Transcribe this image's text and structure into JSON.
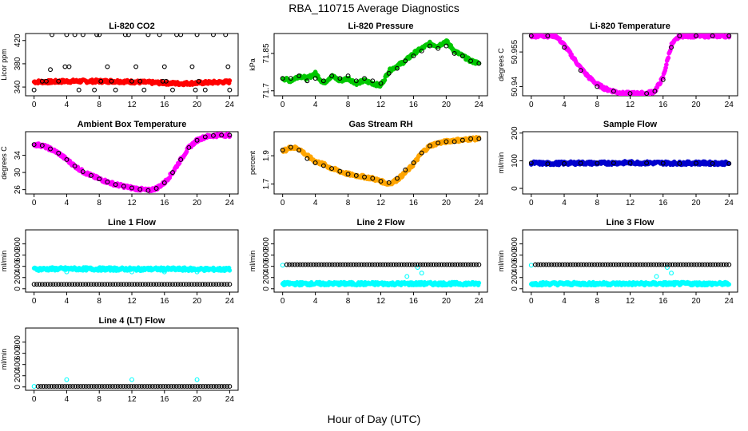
{
  "figure": {
    "title": "RBA_110715  Average Diagnostics",
    "xlabel": "Hour of Day (UTC)"
  },
  "colors": {
    "black": "#000000",
    "red": "#ff0000",
    "green": "#00c800",
    "magenta": "#ff00ff",
    "orange": "#ffa500",
    "blue": "#0000cd",
    "cyan": "#00ffff"
  },
  "chart_data": [
    {
      "type": "scatter",
      "title": "Li-820 CO2",
      "ylabel": "Licor ppm",
      "xlim": [
        0,
        24
      ],
      "ylim": [
        325,
        432
      ],
      "xticks": [
        0,
        4,
        8,
        12,
        16,
        20,
        24
      ],
      "yticks": [
        340,
        380,
        420
      ],
      "series": [
        {
          "color": "red",
          "marker": "filled-dense",
          "x": [
            0,
            2,
            4,
            6,
            8,
            10,
            12,
            14,
            16,
            18,
            20,
            22,
            24
          ],
          "y": [
            349,
            349,
            350,
            350,
            350,
            350,
            349,
            348,
            347,
            346,
            347,
            348,
            349
          ]
        },
        {
          "color": "black",
          "marker": "open",
          "x": [
            0,
            1,
            1.5,
            2,
            2.2,
            3,
            3.8,
            4,
            4.3,
            5,
            5.5,
            6,
            7.4,
            7.7,
            8,
            8.2,
            9,
            9.5,
            10,
            11.2,
            11.6,
            12,
            12.5,
            13,
            13.5,
            14,
            15.4,
            15.8,
            16,
            16.2,
            17,
            17.5,
            18,
            19.4,
            19.8,
            20,
            20.2,
            21,
            22,
            23.5,
            23.8,
            24
          ],
          "y": [
            335,
            350,
            350,
            370,
            430,
            350,
            375,
            430,
            375,
            430,
            335,
            430,
            335,
            430,
            430,
            350,
            375,
            350,
            335,
            430,
            430,
            350,
            375,
            350,
            335,
            430,
            430,
            350,
            375,
            350,
            335,
            430,
            430,
            375,
            335,
            430,
            350,
            335,
            430,
            430,
            375,
            335
          ]
        }
      ]
    },
    {
      "type": "scatter",
      "title": "Li-820 Pressure",
      "ylabel": "kPa",
      "xlim": [
        0,
        24
      ],
      "ylim": [
        71.68,
        71.93
      ],
      "xticks": [
        0,
        4,
        8,
        12,
        16,
        20,
        24
      ],
      "yticks": [
        71.7,
        71.85
      ],
      "series": [
        {
          "color": "green",
          "marker": "filled-dense",
          "x": [
            0,
            1,
            2,
            3,
            4,
            5,
            6,
            7,
            8,
            9,
            10,
            11,
            12,
            13,
            14,
            15,
            16,
            17,
            18,
            19,
            20,
            21,
            22,
            23,
            24
          ],
          "y": [
            71.75,
            71.74,
            71.76,
            71.75,
            71.77,
            71.73,
            71.76,
            71.74,
            71.75,
            71.73,
            71.74,
            71.73,
            71.72,
            71.78,
            71.8,
            71.82,
            71.85,
            71.87,
            71.89,
            71.88,
            71.9,
            71.86,
            71.84,
            71.82,
            71.81
          ]
        },
        {
          "color": "black",
          "marker": "open",
          "x": [
            0,
            1,
            2,
            3,
            4,
            5,
            6,
            7,
            8,
            9,
            10,
            11,
            12,
            13,
            14,
            15,
            16,
            17,
            18,
            19,
            20,
            21,
            22,
            23,
            24
          ],
          "y": [
            71.75,
            71.75,
            71.76,
            71.74,
            71.75,
            71.74,
            71.76,
            71.75,
            71.76,
            71.74,
            71.75,
            71.74,
            71.73,
            71.77,
            71.79,
            71.82,
            71.84,
            71.86,
            71.88,
            71.87,
            71.88,
            71.85,
            71.84,
            71.82,
            71.81
          ]
        }
      ]
    },
    {
      "type": "scatter",
      "title": "Li-820 Temperature",
      "ylabel": "degrees C",
      "xlim": [
        0,
        24
      ],
      "ylim": [
        50.936,
        50.963
      ],
      "xticks": [
        0,
        4,
        8,
        12,
        16,
        20,
        24
      ],
      "yticks": [
        50.94,
        50.955
      ],
      "series": [
        {
          "color": "magenta",
          "marker": "filled-dense",
          "x": [
            0,
            1,
            2,
            3,
            4,
            5,
            6,
            7,
            8,
            9,
            10,
            11,
            12,
            13,
            14,
            15,
            16,
            17,
            18,
            19,
            20,
            21,
            22,
            23,
            24
          ],
          "y": [
            50.962,
            50.962,
            50.962,
            50.962,
            50.958,
            50.953,
            50.948,
            50.944,
            50.941,
            50.939,
            50.938,
            50.937,
            50.937,
            50.937,
            50.937,
            50.938,
            50.944,
            50.958,
            50.962,
            50.962,
            50.962,
            50.962,
            50.962,
            50.962,
            50.962
          ]
        },
        {
          "color": "black",
          "marker": "open",
          "x": [
            0,
            2,
            4,
            6,
            8,
            10,
            12,
            14,
            15,
            16,
            17,
            18,
            20,
            22,
            24
          ],
          "y": [
            50.962,
            50.962,
            50.957,
            50.947,
            50.94,
            50.938,
            50.937,
            50.937,
            50.938,
            50.943,
            50.957,
            50.962,
            50.962,
            50.962,
            50.962
          ]
        }
      ]
    },
    {
      "type": "scatter",
      "title": "Ambient Box Temperature",
      "ylabel": "degrees C",
      "xlim": [
        0,
        24
      ],
      "ylim": [
        25,
        39.5
      ],
      "xticks": [
        0,
        4,
        8,
        12,
        16,
        20,
        24
      ],
      "yticks": [
        26,
        30,
        34
      ],
      "series": [
        {
          "color": "magenta",
          "marker": "filled-dense",
          "x": [
            0,
            1,
            2,
            3,
            4,
            5,
            6,
            7,
            8,
            9,
            10,
            11,
            12,
            13,
            14,
            15,
            16,
            17,
            18,
            19,
            20,
            21,
            22,
            23,
            24
          ],
          "y": [
            36.5,
            36.3,
            35.5,
            34.5,
            33,
            31.5,
            30.2,
            29.3,
            28.5,
            27.8,
            27.2,
            26.8,
            26.4,
            26.1,
            25.8,
            26.3,
            27.6,
            30,
            33,
            35.8,
            37.5,
            38.3,
            38.6,
            38.7,
            38.7
          ]
        },
        {
          "color": "black",
          "marker": "open",
          "x": [
            0,
            1,
            2,
            3,
            4,
            5,
            6,
            7,
            8,
            9,
            10,
            11,
            12,
            13,
            14,
            15,
            16,
            17,
            18,
            19,
            20,
            21,
            22,
            23,
            24
          ],
          "y": [
            36.5,
            36.3,
            35.5,
            34.5,
            33,
            31.5,
            30.2,
            29.3,
            28.5,
            27.8,
            27.2,
            26.8,
            26.4,
            26.1,
            25.8,
            26.3,
            27.6,
            30,
            33,
            35.8,
            37.5,
            38.3,
            38.6,
            38.7,
            38.7
          ]
        }
      ]
    },
    {
      "type": "scatter",
      "title": "Gas Stream RH",
      "ylabel": "percent",
      "xlim": [
        0,
        24
      ],
      "ylim": [
        1.63,
        2.07
      ],
      "xticks": [
        0,
        4,
        8,
        12,
        16,
        20,
        24
      ],
      "yticks": [
        1.7,
        1.9
      ],
      "series": [
        {
          "color": "orange",
          "marker": "filled-dense",
          "x": [
            0,
            1,
            2,
            3,
            4,
            5,
            6,
            7,
            8,
            9,
            10,
            11,
            12,
            13,
            14,
            15,
            16,
            17,
            18,
            19,
            20,
            21,
            22,
            23,
            24
          ],
          "y": [
            1.93,
            1.96,
            1.95,
            1.9,
            1.86,
            1.84,
            1.81,
            1.79,
            1.77,
            1.76,
            1.75,
            1.74,
            1.72,
            1.7,
            1.73,
            1.78,
            1.84,
            1.92,
            1.97,
            1.99,
            2.0,
            2.01,
            2.01,
            2.02,
            2.02
          ]
        },
        {
          "color": "black",
          "marker": "open",
          "x": [
            0,
            1,
            2,
            3,
            4,
            5,
            6,
            7,
            8,
            9,
            10,
            11,
            12,
            13,
            14,
            15,
            16,
            17,
            18,
            19,
            20,
            21,
            22,
            23,
            24
          ],
          "y": [
            1.94,
            1.96,
            1.94,
            1.88,
            1.85,
            1.83,
            1.81,
            1.79,
            1.77,
            1.76,
            1.75,
            1.74,
            1.72,
            1.71,
            1.74,
            1.8,
            1.85,
            1.92,
            1.97,
            1.99,
            2.0,
            2.0,
            2.01,
            2.02,
            2.02
          ]
        }
      ]
    },
    {
      "type": "scatter",
      "title": "Sample Flow",
      "ylabel": "ml/min",
      "xlim": [
        0,
        24
      ],
      "ylim": [
        -20,
        205
      ],
      "xticks": [
        0,
        4,
        8,
        12,
        16,
        20,
        24
      ],
      "yticks": [
        0,
        100,
        200
      ],
      "series": [
        {
          "color": "blue",
          "marker": "filled-dense",
          "x": [
            0,
            2,
            4,
            6,
            8,
            10,
            12,
            14,
            16,
            18,
            20,
            22,
            24
          ],
          "y": [
            92,
            90,
            91,
            92,
            91,
            92,
            93,
            92,
            92,
            91,
            92,
            91,
            91
          ]
        },
        {
          "color": "black",
          "marker": "open",
          "x": [
            0,
            2,
            4,
            6,
            8,
            10,
            12,
            14,
            16,
            18,
            20,
            22,
            24
          ],
          "y": [
            92,
            89,
            90,
            91,
            91,
            92,
            92,
            92,
            91,
            90,
            91,
            90,
            90
          ]
        }
      ]
    },
    {
      "type": "scatter",
      "title": "Line 1 Flow",
      "ylabel": "ml/min",
      "xlim": [
        0,
        24
      ],
      "ylim": [
        -60,
        1050
      ],
      "xticks": [
        0,
        4,
        8,
        12,
        16,
        20,
        24
      ],
      "yticks": [
        0,
        200,
        400,
        600,
        800
      ],
      "series": [
        {
          "color": "cyan",
          "marker": "filled-dense",
          "x": [
            0,
            4,
            8,
            12,
            16,
            20,
            24
          ],
          "y": [
            350,
            355,
            352,
            350,
            350,
            348,
            345
          ]
        },
        {
          "color": "cyan",
          "marker": "open",
          "x": [
            4,
            12,
            16,
            20
          ],
          "y": [
            300,
            300,
            300,
            300
          ]
        },
        {
          "color": "black",
          "marker": "open",
          "x": [
            0,
            4,
            8,
            12,
            16,
            20,
            24
          ],
          "y": [
            80,
            80,
            80,
            80,
            80,
            80,
            80
          ]
        }
      ]
    },
    {
      "type": "scatter",
      "title": "Line 2 Flow",
      "ylabel": "ml/min",
      "xlim": [
        0,
        24
      ],
      "ylim": [
        -60,
        1050
      ],
      "xticks": [
        0,
        4,
        8,
        12,
        16,
        20,
        24
      ],
      "yticks": [
        0,
        200,
        400,
        600,
        800
      ],
      "series": [
        {
          "color": "cyan",
          "marker": "filled-dense",
          "x": [
            0,
            4,
            8,
            12,
            16,
            20,
            24
          ],
          "y": [
            90,
            90,
            90,
            90,
            90,
            90,
            90
          ]
        },
        {
          "color": "cyan",
          "marker": "open",
          "x": [
            0,
            15.2,
            16.5,
            17
          ],
          "y": [
            420,
            220,
            380,
            280
          ]
        },
        {
          "color": "black",
          "marker": "open",
          "x": [
            0.5,
            4,
            8,
            12,
            16,
            20,
            24
          ],
          "y": [
            430,
            430,
            430,
            430,
            430,
            430,
            430
          ]
        }
      ]
    },
    {
      "type": "scatter",
      "title": "Line 3 Flow",
      "ylabel": "ml/min",
      "xlim": [
        0,
        24
      ],
      "ylim": [
        -60,
        1050
      ],
      "xticks": [
        0,
        4,
        8,
        12,
        16,
        20,
        24
      ],
      "yticks": [
        0,
        200,
        400,
        600,
        800
      ],
      "series": [
        {
          "color": "cyan",
          "marker": "filled-dense",
          "x": [
            0,
            4,
            8,
            12,
            16,
            20,
            24
          ],
          "y": [
            90,
            90,
            90,
            90,
            90,
            90,
            90
          ]
        },
        {
          "color": "cyan",
          "marker": "open",
          "x": [
            0,
            15.2,
            16.5,
            17
          ],
          "y": [
            420,
            220,
            380,
            280
          ]
        },
        {
          "color": "black",
          "marker": "open",
          "x": [
            0.5,
            4,
            8,
            12,
            16,
            20,
            24
          ],
          "y": [
            430,
            430,
            430,
            430,
            430,
            430,
            430
          ]
        }
      ]
    },
    {
      "type": "scatter",
      "title": "Line 4 (LT) Flow",
      "ylabel": "ml/min",
      "xlim": [
        0,
        24
      ],
      "ylim": [
        -60,
        1050
      ],
      "xticks": [
        0,
        4,
        8,
        12,
        16,
        20,
        24
      ],
      "yticks": [
        0,
        200,
        400,
        600,
        800
      ],
      "series": [
        {
          "color": "cyan",
          "marker": "open",
          "x": [
            0,
            4,
            12,
            20
          ],
          "y": [
            10,
            130,
            130,
            130
          ]
        },
        {
          "color": "black",
          "marker": "open",
          "x": [
            0.5,
            4,
            8,
            12,
            16,
            20,
            24
          ],
          "y": [
            10,
            10,
            10,
            10,
            10,
            10,
            10
          ]
        }
      ]
    }
  ]
}
